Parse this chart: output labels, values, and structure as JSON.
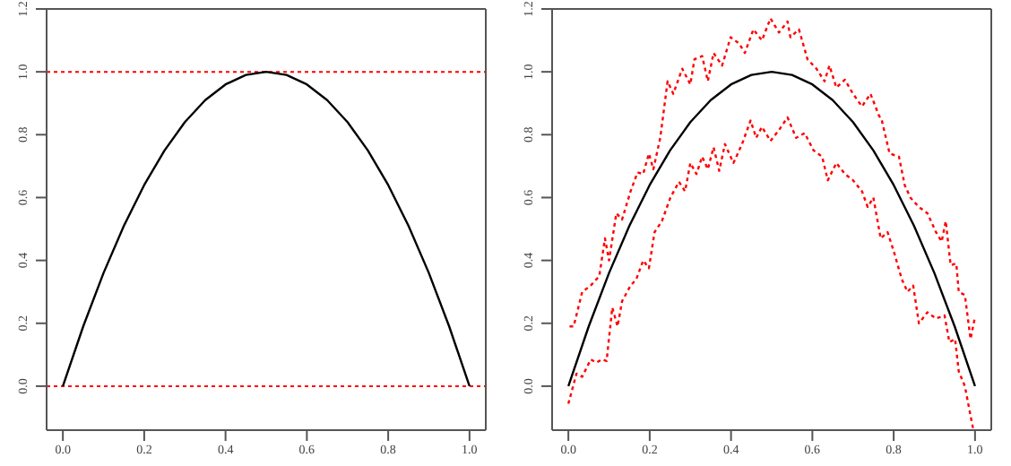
{
  "chart_data": [
    {
      "type": "line",
      "xlim": [
        -0.04,
        1.04
      ],
      "ylim": [
        -0.14,
        1.2
      ],
      "xticks": [
        {
          "value": 0,
          "label": "0.0"
        },
        {
          "value": 0.2,
          "label": "0.2"
        },
        {
          "value": 0.4,
          "label": "0.4"
        },
        {
          "value": 0.6,
          "label": "0.6"
        },
        {
          "value": 0.8,
          "label": "0.8"
        },
        {
          "value": 1,
          "label": "1.0"
        }
      ],
      "yticks": [
        {
          "value": 0,
          "label": "0.0"
        },
        {
          "value": 0.2,
          "label": "0.2"
        },
        {
          "value": 0.4,
          "label": "0.4"
        },
        {
          "value": 0.6,
          "label": "0.6"
        },
        {
          "value": 0.8,
          "label": "0.8"
        },
        {
          "value": 1,
          "label": "1.0"
        },
        {
          "value": 1.2,
          "label": "1.2"
        }
      ],
      "grid": false,
      "legend": false,
      "marker": "none",
      "series": [
        {
          "color": "#000000",
          "line_style": "solid",
          "x": [
            0,
            0.05,
            0.1,
            0.15,
            0.2,
            0.25,
            0.3,
            0.35,
            0.4,
            0.45,
            0.5,
            0.55,
            0.6,
            0.65,
            0.7,
            0.75,
            0.8,
            0.85,
            0.9,
            0.95,
            1
          ],
          "values": [
            0,
            0.19,
            0.36,
            0.51,
            0.64,
            0.75,
            0.84,
            0.91,
            0.96,
            0.99,
            1,
            0.99,
            0.96,
            0.91,
            0.84,
            0.75,
            0.64,
            0.51,
            0.36,
            0.19,
            0
          ]
        }
      ],
      "ref_lines": [
        {
          "axis": "y",
          "value": 0,
          "color": "#ff0000",
          "line_style": "dotted"
        },
        {
          "axis": "y",
          "value": 1,
          "color": "#ff0000",
          "line_style": "dotted"
        }
      ]
    },
    {
      "type": "line",
      "xlim": [
        -0.04,
        1.04
      ],
      "ylim": [
        -0.14,
        1.2
      ],
      "xticks": [
        {
          "value": 0,
          "label": "0.0"
        },
        {
          "value": 0.2,
          "label": "0.2"
        },
        {
          "value": 0.4,
          "label": "0.4"
        },
        {
          "value": 0.6,
          "label": "0.6"
        },
        {
          "value": 0.8,
          "label": "0.8"
        },
        {
          "value": 1,
          "label": "1.0"
        }
      ],
      "yticks": [
        {
          "value": 0,
          "label": "0.0"
        },
        {
          "value": 0.2,
          "label": "0.2"
        },
        {
          "value": 0.4,
          "label": "0.4"
        },
        {
          "value": 0.6,
          "label": "0.6"
        },
        {
          "value": 0.8,
          "label": "0.8"
        },
        {
          "value": 1,
          "label": "1.0"
        },
        {
          "value": 1.2,
          "label": "1.2"
        }
      ],
      "grid": false,
      "legend": false,
      "marker": "none",
      "series": [
        {
          "color": "#000000",
          "line_style": "solid",
          "x": [
            0,
            0.05,
            0.1,
            0.15,
            0.2,
            0.25,
            0.3,
            0.35,
            0.4,
            0.45,
            0.5,
            0.55,
            0.6,
            0.65,
            0.7,
            0.75,
            0.8,
            0.85,
            0.9,
            0.95,
            1
          ],
          "values": [
            0,
            0.19,
            0.36,
            0.51,
            0.64,
            0.75,
            0.84,
            0.91,
            0.96,
            0.99,
            1,
            0.99,
            0.96,
            0.91,
            0.84,
            0.75,
            0.64,
            0.51,
            0.36,
            0.19,
            0
          ]
        },
        {
          "color": "#ff0000",
          "line_style": "dotted",
          "x": [
            0.003,
            0.013,
            0.034,
            0.055,
            0.076,
            0.09,
            0.1,
            0.118,
            0.132,
            0.153,
            0.17,
            0.184,
            0.198,
            0.209,
            0.226,
            0.244,
            0.258,
            0.28,
            0.3,
            0.31,
            0.329,
            0.343,
            0.357,
            0.378,
            0.399,
            0.42,
            0.434,
            0.455,
            0.476,
            0.497,
            0.518,
            0.539,
            0.546,
            0.567,
            0.588,
            0.61,
            0.63,
            0.642,
            0.659,
            0.68,
            0.7,
            0.722,
            0.743,
            0.764,
            0.77,
            0.79,
            0.813,
            0.827,
            0.841,
            0.862,
            0.883,
            0.904,
            0.918,
            0.928,
            0.94,
            0.954,
            0.96,
            0.975,
            0.989,
            1
          ],
          "values": [
            0.19,
            0.19,
            0.3,
            0.32,
            0.35,
            0.47,
            0.4,
            0.55,
            0.53,
            0.62,
            0.68,
            0.675,
            0.74,
            0.69,
            0.79,
            0.97,
            0.93,
            1.01,
            0.96,
            1.04,
            1.05,
            0.97,
            1.06,
            1.02,
            1.11,
            1.09,
            1.06,
            1.135,
            1.1,
            1.17,
            1.125,
            1.16,
            1.11,
            1.135,
            1.04,
            1.01,
            0.97,
            1.02,
            0.95,
            0.975,
            0.93,
            0.89,
            0.93,
            0.86,
            0.85,
            0.74,
            0.73,
            0.64,
            0.6,
            0.57,
            0.55,
            0.49,
            0.46,
            0.525,
            0.385,
            0.39,
            0.3,
            0.29,
            0.15,
            0.22
          ]
        },
        {
          "color": "#ff0000",
          "line_style": "dotted",
          "x": [
            0,
            0.02,
            0.034,
            0.055,
            0.069,
            0.083,
            0.094,
            0.108,
            0.121,
            0.132,
            0.153,
            0.167,
            0.184,
            0.198,
            0.212,
            0.23,
            0.251,
            0.272,
            0.287,
            0.3,
            0.315,
            0.329,
            0.343,
            0.357,
            0.371,
            0.385,
            0.406,
            0.427,
            0.448,
            0.462,
            0.476,
            0.497,
            0.518,
            0.539,
            0.56,
            0.581,
            0.603,
            0.624,
            0.638,
            0.659,
            0.68,
            0.7,
            0.722,
            0.736,
            0.75,
            0.768,
            0.785,
            0.8,
            0.82,
            0.834,
            0.848,
            0.862,
            0.883,
            0.904,
            0.925,
            0.937,
            0.951,
            0.96,
            0.975,
            0.989,
            0.996
          ],
          "values": [
            -0.056,
            0.04,
            0.03,
            0.085,
            0.075,
            0.085,
            0.08,
            0.25,
            0.19,
            0.27,
            0.32,
            0.34,
            0.4,
            0.375,
            0.49,
            0.525,
            0.6,
            0.65,
            0.62,
            0.71,
            0.675,
            0.73,
            0.69,
            0.76,
            0.685,
            0.77,
            0.71,
            0.77,
            0.845,
            0.79,
            0.825,
            0.78,
            0.815,
            0.855,
            0.79,
            0.805,
            0.75,
            0.73,
            0.655,
            0.71,
            0.675,
            0.655,
            0.62,
            0.57,
            0.6,
            0.47,
            0.49,
            0.43,
            0.34,
            0.3,
            0.32,
            0.2,
            0.235,
            0.215,
            0.225,
            0.14,
            0.15,
            0.047,
            0,
            -0.094,
            -0.14
          ]
        }
      ]
    }
  ]
}
